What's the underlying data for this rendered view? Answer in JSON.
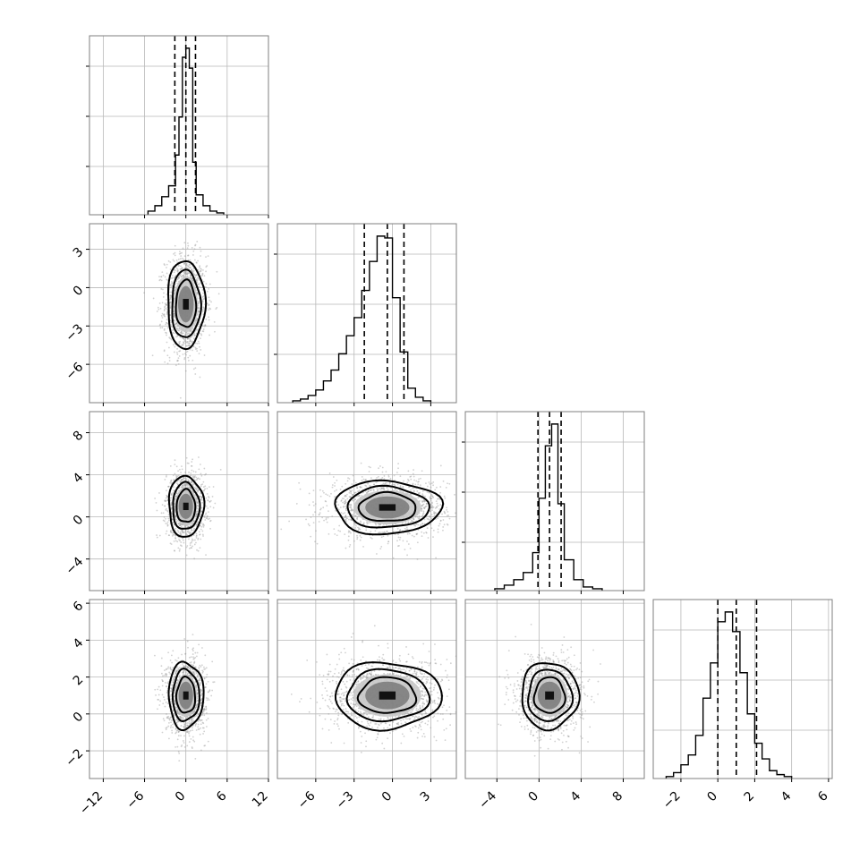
{
  "chart_data": {
    "type": "corner",
    "axis_labels": [
      "",
      "",
      "",
      ""
    ],
    "parameters": [
      {
        "range": [
          -14,
          12
        ],
        "x_ticks": [
          -12,
          -6,
          0,
          6,
          12
        ],
        "x_tick_labels": [
          "−12",
          "−6",
          "0",
          "6",
          "12"
        ],
        "quantiles": [
          -1.6,
          0,
          1.4
        ],
        "hist_counts": [
          0.02,
          0.05,
          0.1,
          0.16,
          0.33,
          0.54,
          0.87,
          0.92,
          0.81,
          0.29,
          0.11,
          0.05,
          0.02,
          0.01
        ],
        "hist_edges": [
          -5.5,
          -4.5,
          -3.5,
          -2.5,
          -1.5,
          -1.0,
          -0.5,
          0,
          0.5,
          1.0,
          1.5,
          2.5,
          3.5,
          4.5,
          5.5
        ]
      },
      {
        "range": [
          -9,
          5
        ],
        "x_ticks": [
          -6,
          -3,
          0,
          3
        ],
        "x_tick_labels": [
          "−6",
          "−3",
          "0",
          "3"
        ],
        "y_ticks": [
          -6,
          -3,
          0,
          3
        ],
        "y_tick_labels": [
          "−6",
          "−3",
          "0",
          "3"
        ],
        "quantiles": [
          -2.2,
          -0.4,
          0.9
        ],
        "hist_counts": [
          0.01,
          0.02,
          0.04,
          0.07,
          0.12,
          0.18,
          0.27,
          0.37,
          0.47,
          0.62,
          0.78,
          0.92,
          0.91,
          0.58,
          0.28,
          0.08,
          0.03,
          0.01
        ],
        "hist_edges": [
          -7.8,
          -7.2,
          -6.6,
          -6.0,
          -5.4,
          -4.8,
          -4.2,
          -3.6,
          -3.0,
          -2.4,
          -1.8,
          -1.2,
          -0.6,
          0.0,
          0.6,
          1.2,
          1.8,
          2.4,
          3.0
        ]
      },
      {
        "range": [
          -7,
          10
        ],
        "x_ticks": [
          -4,
          0,
          4,
          8
        ],
        "x_tick_labels": [
          "−4",
          "0",
          "4",
          "8"
        ],
        "y_ticks": [
          -4,
          0,
          4,
          8
        ],
        "y_tick_labels": [
          "−4",
          "0",
          "4",
          "8"
        ],
        "quantiles": [
          -0.1,
          1.0,
          2.1
        ],
        "hist_counts": [
          0.01,
          0.03,
          0.06,
          0.1,
          0.21,
          0.51,
          0.8,
          0.92,
          0.48,
          0.17,
          0.06,
          0.02,
          0.01
        ],
        "hist_edges": [
          -4.2,
          -3.3,
          -2.4,
          -1.5,
          -0.6,
          0.0,
          0.6,
          1.2,
          1.8,
          2.4,
          3.3,
          4.2,
          5.1,
          6.0
        ]
      },
      {
        "range": [
          -3.5,
          6.2
        ],
        "x_ticks": [
          -2,
          0,
          2,
          4,
          6
        ],
        "x_tick_labels": [
          "−2",
          "0",
          "2",
          "4",
          "6"
        ],
        "y_ticks": [
          -2,
          0,
          2,
          4,
          6
        ],
        "y_tick_labels": [
          "−2",
          "0",
          "2",
          "4",
          "6"
        ],
        "quantiles": [
          0.0,
          1.0,
          2.1
        ],
        "hist_counts": [
          0.01,
          0.03,
          0.07,
          0.12,
          0.22,
          0.41,
          0.59,
          0.8,
          0.85,
          0.75,
          0.54,
          0.33,
          0.18,
          0.1,
          0.04,
          0.02,
          0.01
        ],
        "hist_edges": [
          -2.8,
          -2.4,
          -2.0,
          -1.6,
          -1.2,
          -0.8,
          -0.4,
          0.0,
          0.4,
          0.8,
          1.2,
          1.6,
          2.0,
          2.4,
          2.8,
          3.2,
          3.6,
          4.0
        ]
      }
    ],
    "pairs": [
      {
        "x_param": 0,
        "y_param": 1,
        "center": [
          0.0,
          -1.3
        ],
        "spread": [
          1.5,
          1.9
        ]
      },
      {
        "x_param": 0,
        "y_param": 2,
        "center": [
          0.0,
          1.0
        ],
        "spread": [
          1.4,
          1.6
        ]
      },
      {
        "x_param": 1,
        "y_param": 2,
        "center": [
          -0.4,
          0.9
        ],
        "spread": [
          2.3,
          1.4
        ]
      },
      {
        "x_param": 0,
        "y_param": 3,
        "center": [
          0.0,
          1.0
        ],
        "spread": [
          1.4,
          1.0
        ]
      },
      {
        "x_param": 1,
        "y_param": 3,
        "center": [
          -0.4,
          1.0
        ],
        "spread": [
          2.3,
          1.0
        ]
      },
      {
        "x_param": 2,
        "y_param": 3,
        "center": [
          1.0,
          1.0
        ],
        "spread": [
          1.5,
          1.0
        ]
      }
    ],
    "contour_levels": [
      0.4,
      0.8,
      1.2
    ],
    "colors": {
      "hist_line": "#000000",
      "quantile_line": "#000000",
      "contour": "#000000",
      "scatter": "#9a9a9a",
      "density_dark": "#111111",
      "density_mid": "#6e6e6e",
      "density_light": "#c8c8c8",
      "grid": "#b8b8b8",
      "frame": "#7f7f7f"
    }
  }
}
